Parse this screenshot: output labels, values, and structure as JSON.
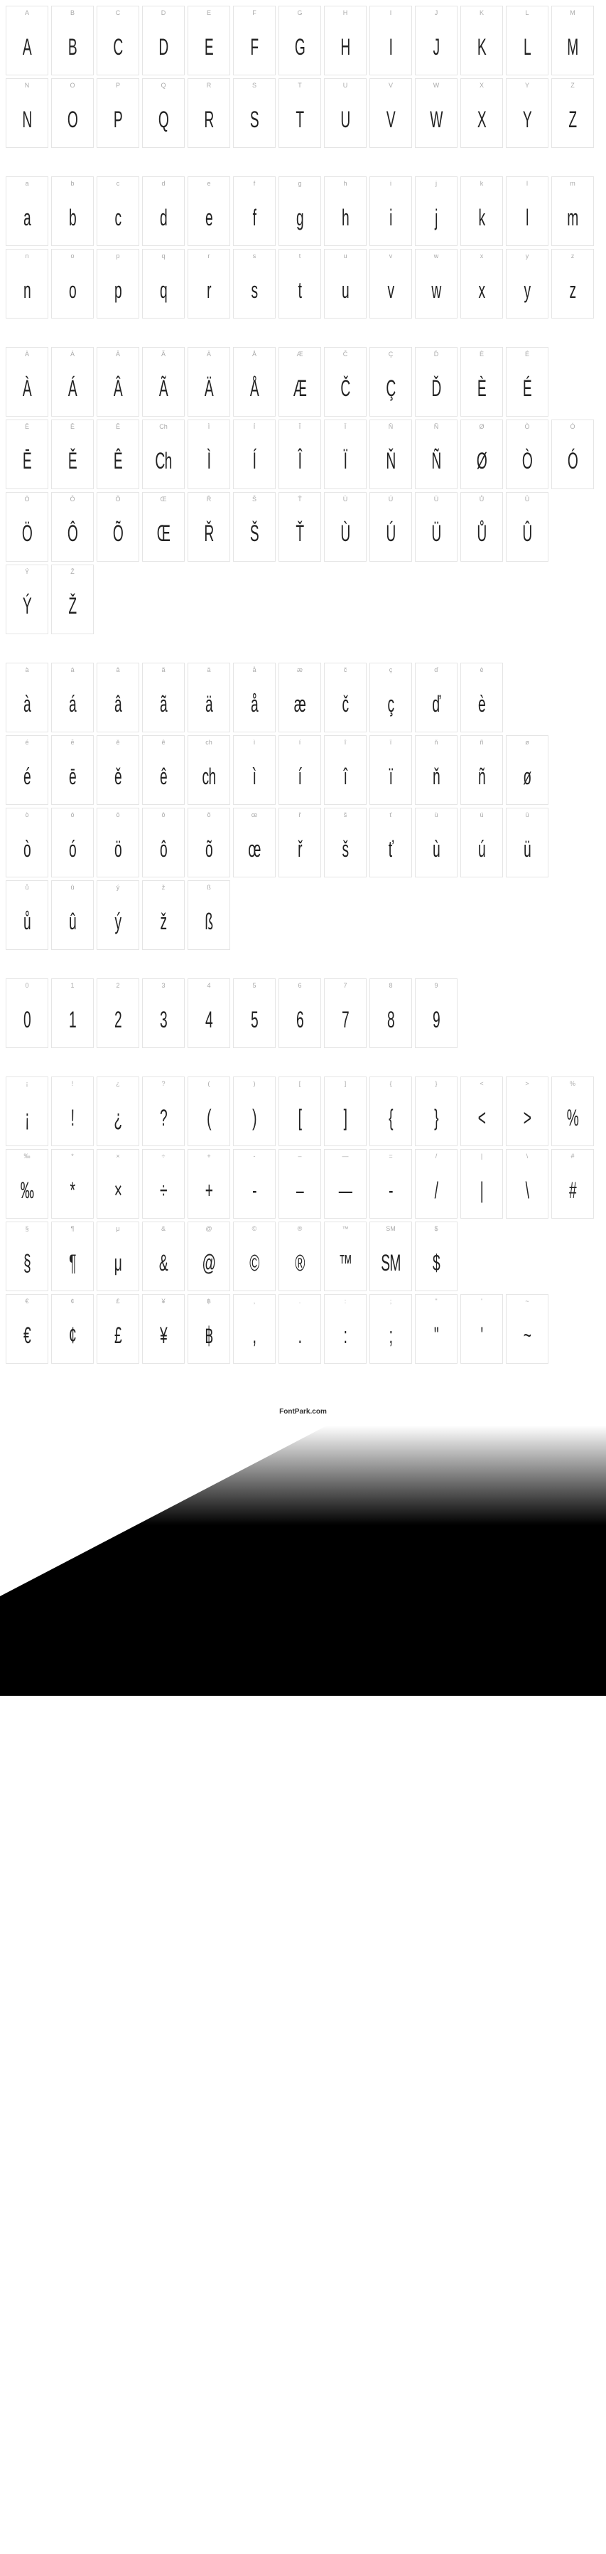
{
  "footer": "FontPark.com",
  "sections": [
    {
      "rows": [
        [
          {
            "l": "A",
            "g": "A"
          },
          {
            "l": "B",
            "g": "B"
          },
          {
            "l": "C",
            "g": "C"
          },
          {
            "l": "D",
            "g": "D"
          },
          {
            "l": "E",
            "g": "E"
          },
          {
            "l": "F",
            "g": "F"
          },
          {
            "l": "G",
            "g": "G"
          },
          {
            "l": "H",
            "g": "H"
          },
          {
            "l": "I",
            "g": "I"
          },
          {
            "l": "J",
            "g": "J"
          },
          {
            "l": "K",
            "g": "K"
          },
          {
            "l": "L",
            "g": "L"
          },
          {
            "l": "M",
            "g": "M"
          }
        ],
        [
          {
            "l": "N",
            "g": "N"
          },
          {
            "l": "O",
            "g": "O"
          },
          {
            "l": "P",
            "g": "P"
          },
          {
            "l": "Q",
            "g": "Q"
          },
          {
            "l": "R",
            "g": "R"
          },
          {
            "l": "S",
            "g": "S"
          },
          {
            "l": "T",
            "g": "T"
          },
          {
            "l": "U",
            "g": "U"
          },
          {
            "l": "V",
            "g": "V"
          },
          {
            "l": "W",
            "g": "W"
          },
          {
            "l": "X",
            "g": "X"
          },
          {
            "l": "Y",
            "g": "Y"
          },
          {
            "l": "Z",
            "g": "Z"
          }
        ]
      ]
    },
    {
      "rows": [
        [
          {
            "l": "a",
            "g": "a"
          },
          {
            "l": "b",
            "g": "b"
          },
          {
            "l": "c",
            "g": "c"
          },
          {
            "l": "d",
            "g": "d"
          },
          {
            "l": "e",
            "g": "e"
          },
          {
            "l": "f",
            "g": "f"
          },
          {
            "l": "g",
            "g": "g"
          },
          {
            "l": "h",
            "g": "h"
          },
          {
            "l": "i",
            "g": "i"
          },
          {
            "l": "j",
            "g": "j"
          },
          {
            "l": "k",
            "g": "k"
          },
          {
            "l": "l",
            "g": "l"
          },
          {
            "l": "m",
            "g": "m"
          }
        ],
        [
          {
            "l": "n",
            "g": "n"
          },
          {
            "l": "o",
            "g": "o"
          },
          {
            "l": "p",
            "g": "p"
          },
          {
            "l": "q",
            "g": "q"
          },
          {
            "l": "r",
            "g": "r"
          },
          {
            "l": "s",
            "g": "s"
          },
          {
            "l": "t",
            "g": "t"
          },
          {
            "l": "u",
            "g": "u"
          },
          {
            "l": "v",
            "g": "v"
          },
          {
            "l": "w",
            "g": "w"
          },
          {
            "l": "x",
            "g": "x"
          },
          {
            "l": "y",
            "g": "y"
          },
          {
            "l": "z",
            "g": "z"
          }
        ]
      ]
    },
    {
      "rows": [
        [
          {
            "l": "À",
            "g": "À"
          },
          {
            "l": "Á",
            "g": "Á"
          },
          {
            "l": "Â",
            "g": "Â"
          },
          {
            "l": "Ã",
            "g": "Ã"
          },
          {
            "l": "Ä",
            "g": "Ä"
          },
          {
            "l": "Å",
            "g": "Å"
          },
          {
            "l": "Æ",
            "g": "Æ"
          },
          {
            "l": "Č",
            "g": "Č"
          },
          {
            "l": "Ç",
            "g": "Ç"
          },
          {
            "l": "Ď",
            "g": "Ď"
          },
          {
            "l": "È",
            "g": "È"
          },
          {
            "l": "É",
            "g": "É"
          }
        ],
        [
          {
            "l": "Ē",
            "g": "Ē"
          },
          {
            "l": "Ě",
            "g": "Ě"
          },
          {
            "l": "Ê",
            "g": "Ê"
          },
          {
            "l": "Ch",
            "g": "Ch"
          },
          {
            "l": "Ì",
            "g": "Ì"
          },
          {
            "l": "Í",
            "g": "Í"
          },
          {
            "l": "Î",
            "g": "Î"
          },
          {
            "l": "Ï",
            "g": "Ï"
          },
          {
            "l": "Ň",
            "g": "Ň"
          },
          {
            "l": "Ñ",
            "g": "Ñ"
          },
          {
            "l": "Ø",
            "g": "Ø"
          },
          {
            "l": "Ò",
            "g": "Ò"
          },
          {
            "l": "Ó",
            "g": "Ó"
          }
        ],
        [
          {
            "l": "Ö",
            "g": "Ö"
          },
          {
            "l": "Ô",
            "g": "Ô"
          },
          {
            "l": "Õ",
            "g": "Õ"
          },
          {
            "l": "Œ",
            "g": "Œ"
          },
          {
            "l": "Ř",
            "g": "Ř"
          },
          {
            "l": "Š",
            "g": "Š"
          },
          {
            "l": "Ť",
            "g": "Ť"
          },
          {
            "l": "Ù",
            "g": "Ù"
          },
          {
            "l": "Ú",
            "g": "Ú"
          },
          {
            "l": "Ü",
            "g": "Ü"
          },
          {
            "l": "Ů",
            "g": "Ů"
          },
          {
            "l": "Û",
            "g": "Û"
          }
        ],
        [
          {
            "l": "Ý",
            "g": "Ý"
          },
          {
            "l": "Ž",
            "g": "Ž"
          }
        ]
      ]
    },
    {
      "rows": [
        [
          {
            "l": "à",
            "g": "à"
          },
          {
            "l": "á",
            "g": "á"
          },
          {
            "l": "â",
            "g": "â"
          },
          {
            "l": "ã",
            "g": "ã"
          },
          {
            "l": "ä",
            "g": "ä"
          },
          {
            "l": "å",
            "g": "å"
          },
          {
            "l": "æ",
            "g": "æ"
          },
          {
            "l": "č",
            "g": "č"
          },
          {
            "l": "ç",
            "g": "ç"
          },
          {
            "l": "ď",
            "g": "ď"
          },
          {
            "l": "è",
            "g": "è"
          }
        ],
        [
          {
            "l": "é",
            "g": "é"
          },
          {
            "l": "ē",
            "g": "ē"
          },
          {
            "l": "ě",
            "g": "ě"
          },
          {
            "l": "ê",
            "g": "ê"
          },
          {
            "l": "ch",
            "g": "ch"
          },
          {
            "l": "ì",
            "g": "ì"
          },
          {
            "l": "í",
            "g": "í"
          },
          {
            "l": "î",
            "g": "î"
          },
          {
            "l": "ï",
            "g": "ï"
          },
          {
            "l": "ň",
            "g": "ň"
          },
          {
            "l": "ñ",
            "g": "ñ"
          },
          {
            "l": "ø",
            "g": "ø"
          }
        ],
        [
          {
            "l": "ò",
            "g": "ò"
          },
          {
            "l": "ó",
            "g": "ó"
          },
          {
            "l": "ö",
            "g": "ö"
          },
          {
            "l": "ô",
            "g": "ô"
          },
          {
            "l": "õ",
            "g": "õ"
          },
          {
            "l": "œ",
            "g": "œ"
          },
          {
            "l": "ř",
            "g": "ř"
          },
          {
            "l": "š",
            "g": "š"
          },
          {
            "l": "ť",
            "g": "ť"
          },
          {
            "l": "ù",
            "g": "ù"
          },
          {
            "l": "ú",
            "g": "ú"
          },
          {
            "l": "ü",
            "g": "ü"
          }
        ],
        [
          {
            "l": "ů",
            "g": "ů"
          },
          {
            "l": "û",
            "g": "û"
          },
          {
            "l": "ý",
            "g": "ý"
          },
          {
            "l": "ž",
            "g": "ž"
          },
          {
            "l": "ß",
            "g": "ß"
          }
        ]
      ]
    },
    {
      "rows": [
        [
          {
            "l": "0",
            "g": "0"
          },
          {
            "l": "1",
            "g": "1"
          },
          {
            "l": "2",
            "g": "2"
          },
          {
            "l": "3",
            "g": "3"
          },
          {
            "l": "4",
            "g": "4"
          },
          {
            "l": "5",
            "g": "5"
          },
          {
            "l": "6",
            "g": "6"
          },
          {
            "l": "7",
            "g": "7"
          },
          {
            "l": "8",
            "g": "8"
          },
          {
            "l": "9",
            "g": "9"
          }
        ]
      ]
    },
    {
      "rows": [
        [
          {
            "l": "¡",
            "g": "¡"
          },
          {
            "l": "!",
            "g": "!"
          },
          {
            "l": "¿",
            "g": "¿"
          },
          {
            "l": "?",
            "g": "?"
          },
          {
            "l": "(",
            "g": "("
          },
          {
            "l": ")",
            "g": ")"
          },
          {
            "l": "[",
            "g": "["
          },
          {
            "l": "]",
            "g": "]"
          },
          {
            "l": "{",
            "g": "{"
          },
          {
            "l": "}",
            "g": "}"
          },
          {
            "l": "<",
            "g": "<"
          },
          {
            "l": ">",
            "g": ">"
          },
          {
            "l": "%",
            "g": "%"
          }
        ],
        [
          {
            "l": "‰",
            "g": "‰"
          },
          {
            "l": "*",
            "g": "*"
          },
          {
            "l": "×",
            "g": "×"
          },
          {
            "l": "÷",
            "g": "÷"
          },
          {
            "l": "+",
            "g": "+"
          },
          {
            "l": "-",
            "g": "-"
          },
          {
            "l": "–",
            "g": "–"
          },
          {
            "l": "—",
            "g": "—"
          },
          {
            "l": "=",
            "g": "-"
          },
          {
            "l": "/",
            "g": "/"
          },
          {
            "l": "|",
            "g": "|"
          },
          {
            "l": "\\",
            "g": "\\"
          },
          {
            "l": "#",
            "g": "#"
          }
        ],
        [
          {
            "l": "§",
            "g": "§"
          },
          {
            "l": "¶",
            "g": "¶"
          },
          {
            "l": "μ",
            "g": "μ"
          },
          {
            "l": "&",
            "g": "&"
          },
          {
            "l": "@",
            "g": "@"
          },
          {
            "l": "©",
            "g": "©"
          },
          {
            "l": "®",
            "g": "®"
          },
          {
            "l": "™",
            "g": "™"
          },
          {
            "l": "SM",
            "g": "SM"
          },
          {
            "l": "$",
            "g": "$"
          }
        ],
        [
          {
            "l": "€",
            "g": "€"
          },
          {
            "l": "¢",
            "g": "¢"
          },
          {
            "l": "£",
            "g": "£"
          },
          {
            "l": "¥",
            "g": "¥"
          },
          {
            "l": "฿",
            "g": "฿"
          },
          {
            "l": ",",
            "g": ","
          },
          {
            "l": ".",
            "g": "."
          },
          {
            "l": ":",
            "g": ":"
          },
          {
            "l": ";",
            "g": ";"
          },
          {
            "l": "\"",
            "g": "\""
          },
          {
            "l": "'",
            "g": "'"
          },
          {
            "l": "~",
            "g": "~"
          }
        ]
      ]
    }
  ]
}
